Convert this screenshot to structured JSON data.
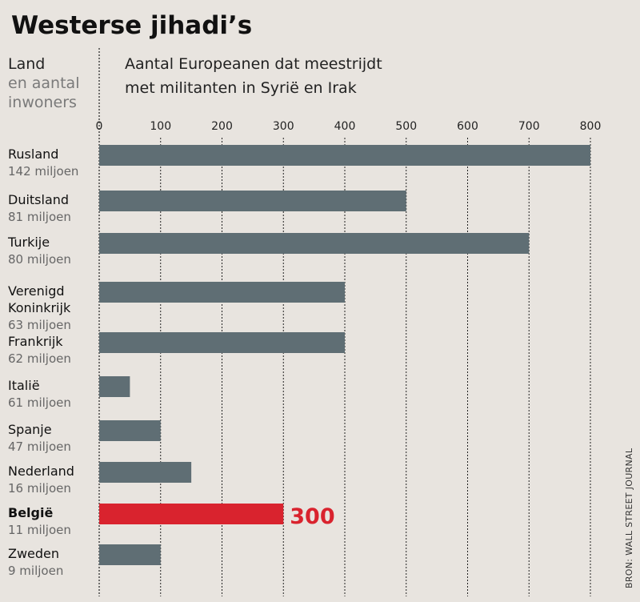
{
  "chart_data": {
    "type": "bar",
    "orientation": "horizontal",
    "title": "Westerse jihadi’s",
    "ylabel_lines": [
      "Land",
      "en aantal",
      "inwoners"
    ],
    "xlabel_lines": [
      "Aantal Europeanen dat meestrijdt",
      "met militanten in Syrië en Irak"
    ],
    "xlim": [
      0,
      800
    ],
    "xticks": [
      0,
      100,
      200,
      300,
      400,
      500,
      600,
      700,
      800
    ],
    "grid": true,
    "categories": [
      {
        "name_lines": [
          "Rusland"
        ],
        "population": "142 miljoen",
        "value": 800
      },
      {
        "name_lines": [
          "Duitsland"
        ],
        "population": "81 miljoen",
        "value": 500
      },
      {
        "name_lines": [
          "Turkije"
        ],
        "population": "80 miljoen",
        "value": 700
      },
      {
        "name_lines": [
          "Verenigd",
          "Koninkrijk"
        ],
        "population": "63 miljoen",
        "value": 400
      },
      {
        "name_lines": [
          "Frankrijk"
        ],
        "population": "62 miljoen",
        "value": 400
      },
      {
        "name_lines": [
          "Italië"
        ],
        "population": "61 miljoen",
        "value": 50
      },
      {
        "name_lines": [
          "Spanje"
        ],
        "population": "47 miljoen",
        "value": 100
      },
      {
        "name_lines": [
          "Nederland"
        ],
        "population": "16 miljoen",
        "value": 150
      },
      {
        "name_lines": [
          "België"
        ],
        "population": "11 miljoen",
        "value": 300,
        "highlight": true,
        "data_label": "300"
      },
      {
        "name_lines": [
          "Zweden"
        ],
        "population": "9 miljoen",
        "value": 100
      }
    ],
    "source": "BRON: WALL STREET JOURNAL",
    "colors": {
      "bar": "#5f6e74",
      "highlight": "#d9232e",
      "background": "#e8e4df"
    }
  }
}
